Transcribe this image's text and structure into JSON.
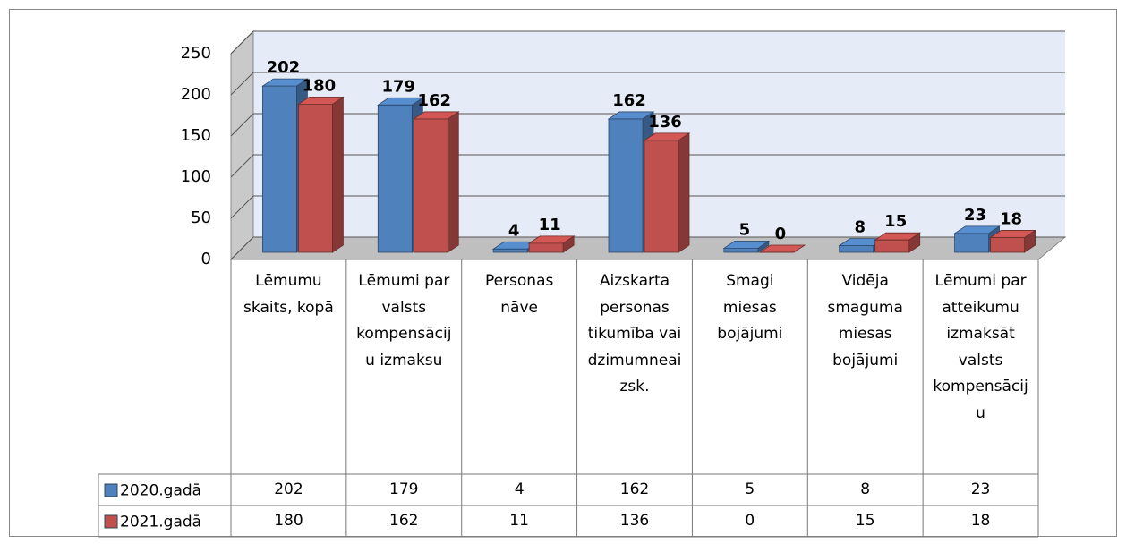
{
  "chart_data": {
    "type": "bar3d",
    "categories": [
      "Lēmumu skaits, kopā",
      "Lēmumi par valsts kompensāciju izmaksu",
      "Personas nāve",
      "Aizskarta personas tikumība vai dzimumneaizsk.",
      "Smagi miesas bojājumi",
      "Vidēja smaguma miesas bojājumi",
      "Lēmumi par atteikumu izmaksāt valsts kompensāciju"
    ],
    "series": [
      {
        "name": "2020.gadā",
        "color": "#4f81bd",
        "values": [
          202,
          179,
          4,
          162,
          5,
          8,
          23
        ]
      },
      {
        "name": "2021.gadā",
        "color": "#c0504d",
        "values": [
          180,
          162,
          11,
          136,
          0,
          15,
          18
        ]
      }
    ],
    "ylim": [
      0,
      250
    ],
    "yticks": [
      0,
      50,
      100,
      150,
      200,
      250
    ],
    "grid": true,
    "data_table": true
  }
}
